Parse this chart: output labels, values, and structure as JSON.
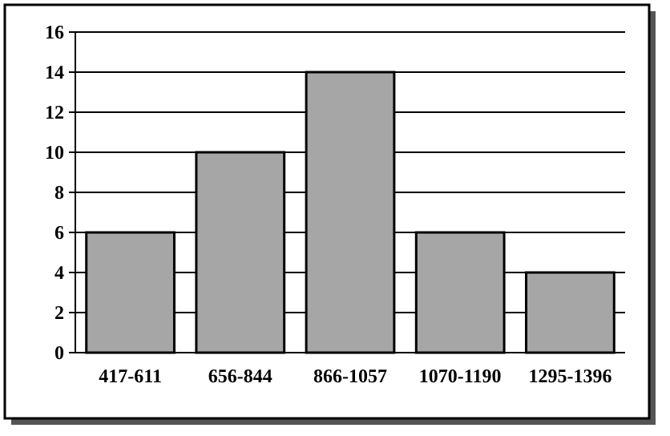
{
  "chart_data": {
    "type": "bar",
    "categories": [
      "417-611",
      "656-844",
      "866-1057",
      "1070-1190",
      "1295-1396"
    ],
    "values": [
      6,
      10,
      14,
      6,
      4
    ],
    "color": "#a6a6a6",
    "ylim": [
      0,
      16
    ],
    "yticks": [
      0,
      2,
      4,
      6,
      8,
      10,
      12,
      14,
      16
    ],
    "grid": "y"
  }
}
